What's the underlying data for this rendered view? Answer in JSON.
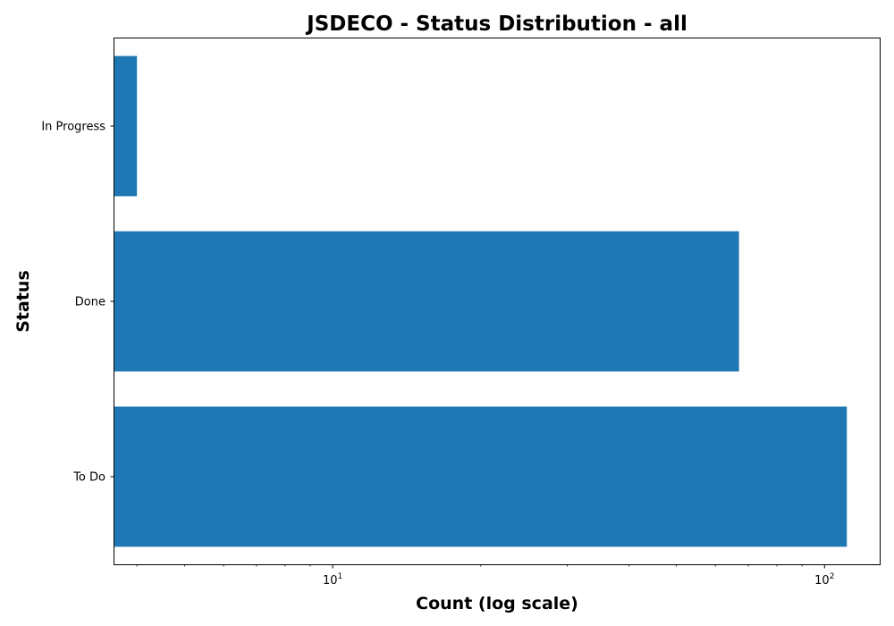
{
  "chart_data": {
    "type": "bar",
    "orientation": "horizontal",
    "title": "JSDECO - Status Distribution - all",
    "xlabel": "Count (log scale)",
    "ylabel": "Status",
    "x_scale": "log",
    "xlim": [
      3.6,
      130
    ],
    "categories": [
      "To Do",
      "Done",
      "In Progress"
    ],
    "values": [
      111,
      67,
      4
    ],
    "x_ticks": [
      {
        "value": 10,
        "base": "10",
        "exponent": "1"
      },
      {
        "value": 100,
        "base": "10",
        "exponent": "2"
      }
    ],
    "bar_color": "#1f77b4",
    "grid": false,
    "legend": "none"
  }
}
